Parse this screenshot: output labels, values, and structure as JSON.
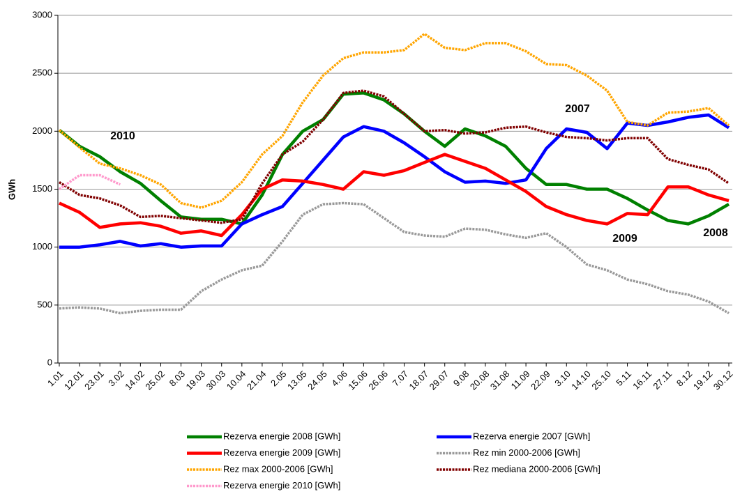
{
  "chart_data": {
    "type": "line",
    "y_label": "GWh",
    "categories": [
      "1.01",
      "12.01",
      "23.01",
      "3.02",
      "14.02",
      "25.02",
      "8.03",
      "19.03",
      "30.03",
      "10.04",
      "21.04",
      "2.05",
      "13.05",
      "24.05",
      "4.06",
      "15.06",
      "26.06",
      "7.07",
      "18.07",
      "29.07",
      "9.08",
      "20.08",
      "31.08",
      "11.09",
      "22.09",
      "3.10",
      "14.10",
      "25.10",
      "5.11",
      "16.11",
      "27.11",
      "8.12",
      "19.12",
      "30.12"
    ],
    "ylim": [
      0,
      3000
    ],
    "yticks": [
      0,
      500,
      1000,
      1500,
      2000,
      2500,
      3000
    ],
    "grid": true,
    "series": [
      {
        "name": "Rezerva energie 2008 [GWh]",
        "color": "#008000",
        "line_style": "solid",
        "values": [
          2010,
          1870,
          1780,
          1650,
          1550,
          1400,
          1260,
          1240,
          1240,
          1200,
          1450,
          1800,
          2000,
          2100,
          2320,
          2330,
          2270,
          2150,
          2000,
          1870,
          2020,
          1960,
          1870,
          1680,
          1540,
          1540,
          1500,
          1500,
          1420,
          1320,
          1230,
          1200,
          1270,
          1370
        ]
      },
      {
        "name": "Rezerva energie 2007 [GWh]",
        "color": "#0000ff",
        "line_style": "solid",
        "values": [
          1000,
          1000,
          1020,
          1050,
          1010,
          1030,
          1000,
          1010,
          1010,
          1200,
          1280,
          1350,
          1550,
          1750,
          1950,
          2040,
          2000,
          1900,
          1780,
          1650,
          1560,
          1570,
          1550,
          1580,
          1850,
          2020,
          1990,
          1850,
          2070,
          2050,
          2080,
          2120,
          2140,
          2030
        ]
      },
      {
        "name": "Rezerva energie 2009 [GWh]",
        "color": "#ff0000",
        "line_style": "solid",
        "values": [
          1380,
          1300,
          1170,
          1200,
          1210,
          1180,
          1120,
          1140,
          1100,
          1280,
          1500,
          1580,
          1570,
          1540,
          1500,
          1650,
          1620,
          1660,
          1730,
          1800,
          1740,
          1680,
          1580,
          1480,
          1350,
          1280,
          1230,
          1200,
          1290,
          1280,
          1520,
          1520,
          1450,
          1400
        ]
      },
      {
        "name": "Rez min 2000-2006 [GWh]",
        "color": "#999999",
        "line_style": "dotted",
        "values": [
          470,
          480,
          470,
          430,
          450,
          460,
          460,
          620,
          720,
          800,
          840,
          1050,
          1280,
          1370,
          1380,
          1370,
          1250,
          1130,
          1100,
          1090,
          1160,
          1150,
          1110,
          1080,
          1120,
          1000,
          850,
          800,
          720,
          680,
          620,
          590,
          530,
          430
        ]
      },
      {
        "name": "Rez max 2000-2006 [GWh]",
        "color": "#ffa500",
        "line_style": "dotted",
        "values": [
          2010,
          1860,
          1720,
          1680,
          1620,
          1540,
          1380,
          1340,
          1400,
          1560,
          1800,
          1960,
          2250,
          2480,
          2630,
          2680,
          2680,
          2700,
          2840,
          2720,
          2700,
          2760,
          2760,
          2690,
          2580,
          2570,
          2480,
          2350,
          2080,
          2050,
          2160,
          2170,
          2200,
          2050
        ]
      },
      {
        "name": "Rez mediana 2000-2006 [GWh]",
        "color": "#800000",
        "line_style": "dotted",
        "values": [
          1560,
          1450,
          1420,
          1360,
          1260,
          1270,
          1250,
          1230,
          1210,
          1240,
          1550,
          1800,
          1910,
          2100,
          2330,
          2350,
          2300,
          2150,
          2000,
          2010,
          1980,
          1990,
          2030,
          2040,
          1990,
          1950,
          1940,
          1920,
          1940,
          1940,
          1760,
          1710,
          1670,
          1550
        ]
      },
      {
        "name": "Rezerva energie 2010 [GWh]",
        "color": "#ff99cc",
        "line_style": "dotted",
        "values": [
          1500,
          1620,
          1620,
          1540,
          null,
          null,
          null,
          null,
          null,
          null,
          null,
          null,
          null,
          null,
          null,
          null,
          null,
          null,
          null,
          null,
          null,
          null,
          null,
          null,
          null,
          null,
          null,
          null,
          null,
          null,
          null,
          null,
          null,
          null
        ]
      }
    ],
    "annotations": [
      {
        "text": "2010",
        "color": "#ff99cc"
      },
      {
        "text": "2007",
        "color": "#0000ff"
      },
      {
        "text": "2009",
        "color": "#ff0000"
      },
      {
        "text": "2008",
        "color": "#008000"
      }
    ]
  }
}
